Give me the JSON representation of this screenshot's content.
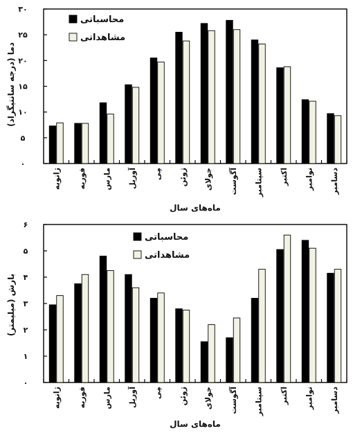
{
  "chart_data": [
    {
      "type": "bar",
      "xlabel": "ماه‌های سال",
      "ylabel": "دما (درجه سانتیگراد)",
      "ylim": [
        0,
        30
      ],
      "yticks": [
        "۰",
        "۵",
        "۱۰",
        "۱۵",
        "۲۰",
        "۲۵",
        "۳۰"
      ],
      "grid": false,
      "legend_position": "top-left",
      "categories": [
        "ژانویه",
        "فوریه",
        "مارس",
        "آوریل",
        "مِی",
        "ژوئن",
        "جولای",
        "آگوست",
        "سپتامبر",
        "اکتبر",
        "نوامبر",
        "دسامبر"
      ],
      "series": [
        {
          "name": "محاسباتی",
          "color": "#000000",
          "values": [
            7.3,
            7.8,
            11.8,
            15.3,
            20.5,
            25.5,
            27.2,
            27.8,
            24.0,
            18.6,
            12.4,
            9.7
          ]
        },
        {
          "name": "مشاهداتی",
          "color": "#f2f2e4",
          "values": [
            7.9,
            7.8,
            9.6,
            14.8,
            19.7,
            23.8,
            25.8,
            26.0,
            23.2,
            18.8,
            12.1,
            9.3
          ]
        }
      ]
    },
    {
      "type": "bar",
      "xlabel": "ماه‌های سال",
      "ylabel": "بارش (میلیمتر)",
      "ylim": [
        0,
        6
      ],
      "yticks": [
        "۰",
        "۱",
        "۲",
        "۳",
        "۴",
        "۵",
        "۶"
      ],
      "grid": false,
      "legend_position": "top-center",
      "categories": [
        "ژانویه",
        "فوریه",
        "مارس",
        "آوریل",
        "مِی",
        "ژوئن",
        "جولای",
        "آگوست",
        "سپتامبر",
        "اکتبر",
        "نوامبر",
        "دسامبر"
      ],
      "series": [
        {
          "name": "محاسباتی",
          "color": "#000000",
          "values": [
            2.95,
            3.75,
            4.8,
            4.1,
            3.2,
            2.8,
            1.55,
            1.7,
            3.2,
            5.05,
            5.4,
            4.15
          ]
        },
        {
          "name": "مشاهداتی",
          "color": "#f2f2e4",
          "values": [
            3.3,
            4.1,
            4.25,
            3.6,
            3.4,
            2.75,
            2.2,
            2.45,
            4.3,
            5.6,
            5.1,
            4.3
          ]
        }
      ]
    }
  ]
}
